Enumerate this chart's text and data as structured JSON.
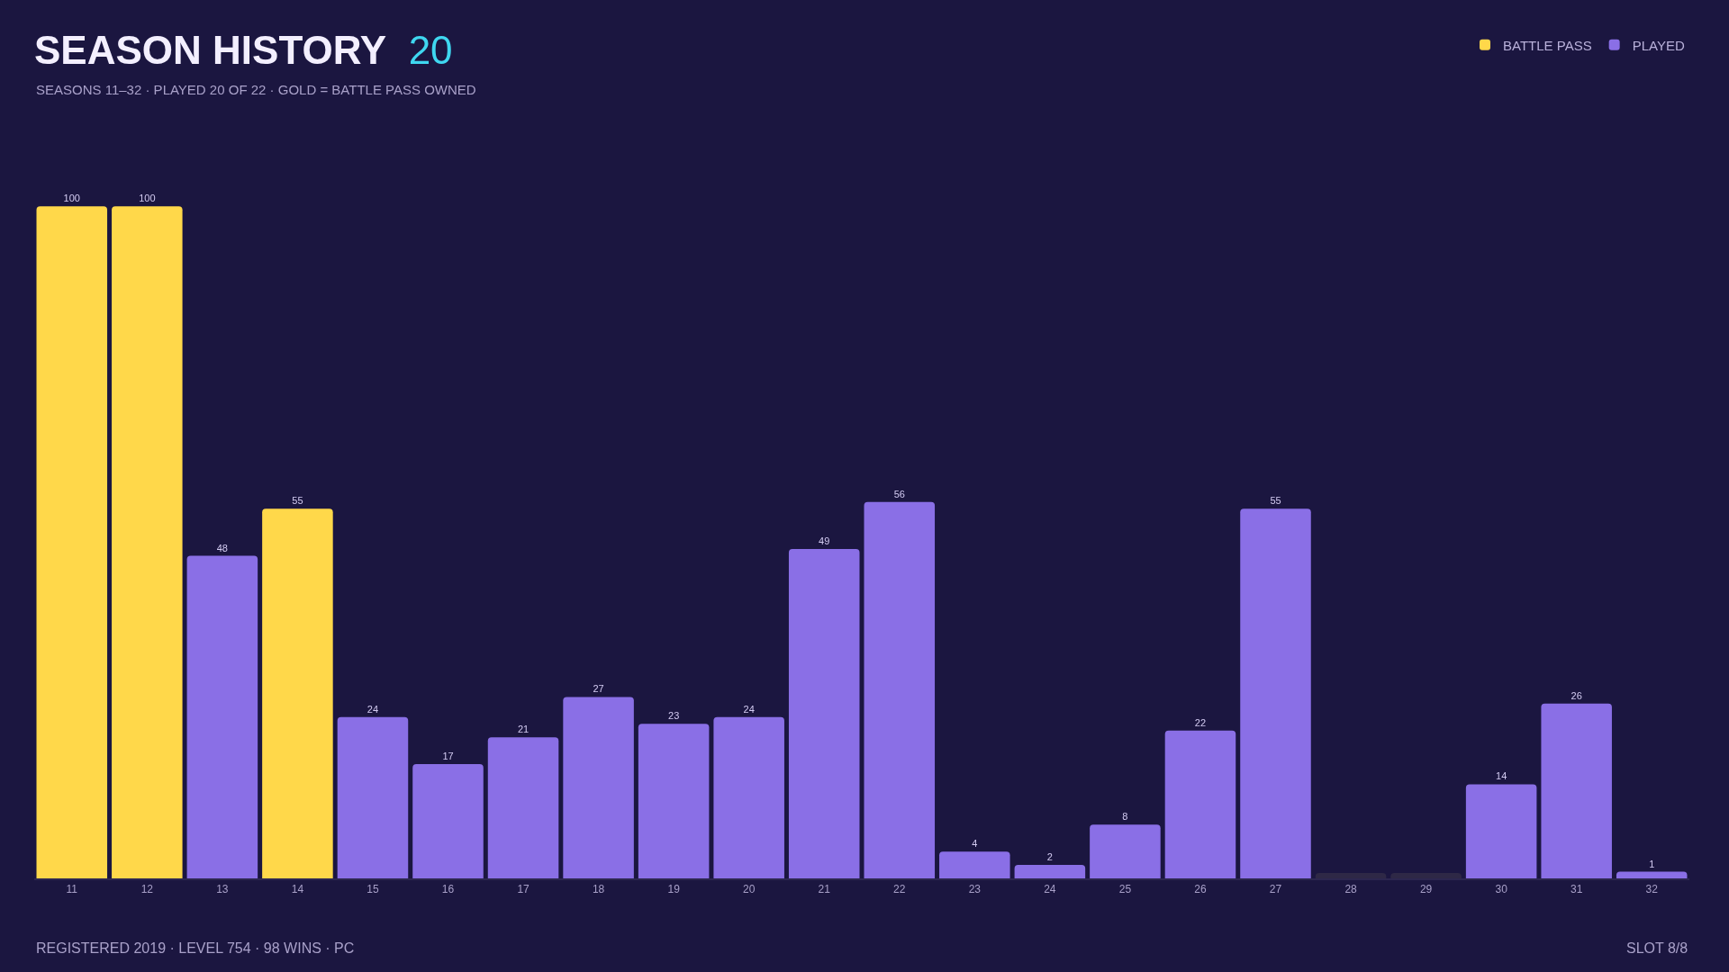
{
  "chart_data": {
    "type": "bar",
    "title": "SEASON HISTORY 20",
    "subtitle": "SEASONS 11–32 · PLAYED 20 OF 22 · GOLD = BATTLE PASS OWNED",
    "annotations": [
      "REGISTERED 2019 · LEVEL 754 · 98 WINS · PC",
      "SLOT 8/8"
    ],
    "categories": [
      "11",
      "12",
      "13",
      "14",
      "15",
      "16",
      "17",
      "18",
      "19",
      "20",
      "21",
      "22",
      "23",
      "24",
      "25",
      "26",
      "27",
      "28",
      "29",
      "30",
      "31",
      "32"
    ],
    "series": [
      {
        "name": "BATTLE PASS",
        "color": "#ffd84a",
        "values": [
          100,
          100,
          null,
          55,
          null,
          null,
          null,
          null,
          null,
          null,
          null,
          null,
          null,
          null,
          null,
          null,
          null,
          null,
          null,
          null,
          null,
          null
        ],
        "value_labels": [
          "100",
          "100",
          null,
          "55",
          null,
          null,
          null,
          null,
          null,
          null,
          null,
          null,
          null,
          null,
          null,
          null,
          null,
          null,
          null,
          null,
          null,
          null
        ]
      },
      {
        "name": "PLAYED",
        "color": "#8a6fe6",
        "values": [
          null,
          null,
          48,
          null,
          24,
          17,
          21,
          27,
          23,
          24,
          49,
          56,
          4,
          2,
          8,
          22,
          55,
          null,
          null,
          14,
          26,
          1
        ],
        "value_labels": [
          null,
          null,
          "48",
          null,
          "24",
          "17",
          "21",
          "27",
          "23",
          "24",
          "49",
          "56",
          "4",
          "2",
          "8",
          "22",
          "55",
          null,
          null,
          "14",
          "26",
          "1"
        ]
      },
      {
        "color": "#2e2846",
        "values": [
          null,
          null,
          null,
          null,
          null,
          null,
          null,
          null,
          null,
          null,
          null,
          null,
          null,
          null,
          null,
          null,
          null,
          0.8,
          0.8,
          null,
          null,
          null
        ]
      }
    ],
    "legend": "top right",
    "tick_labels": "x"
  }
}
